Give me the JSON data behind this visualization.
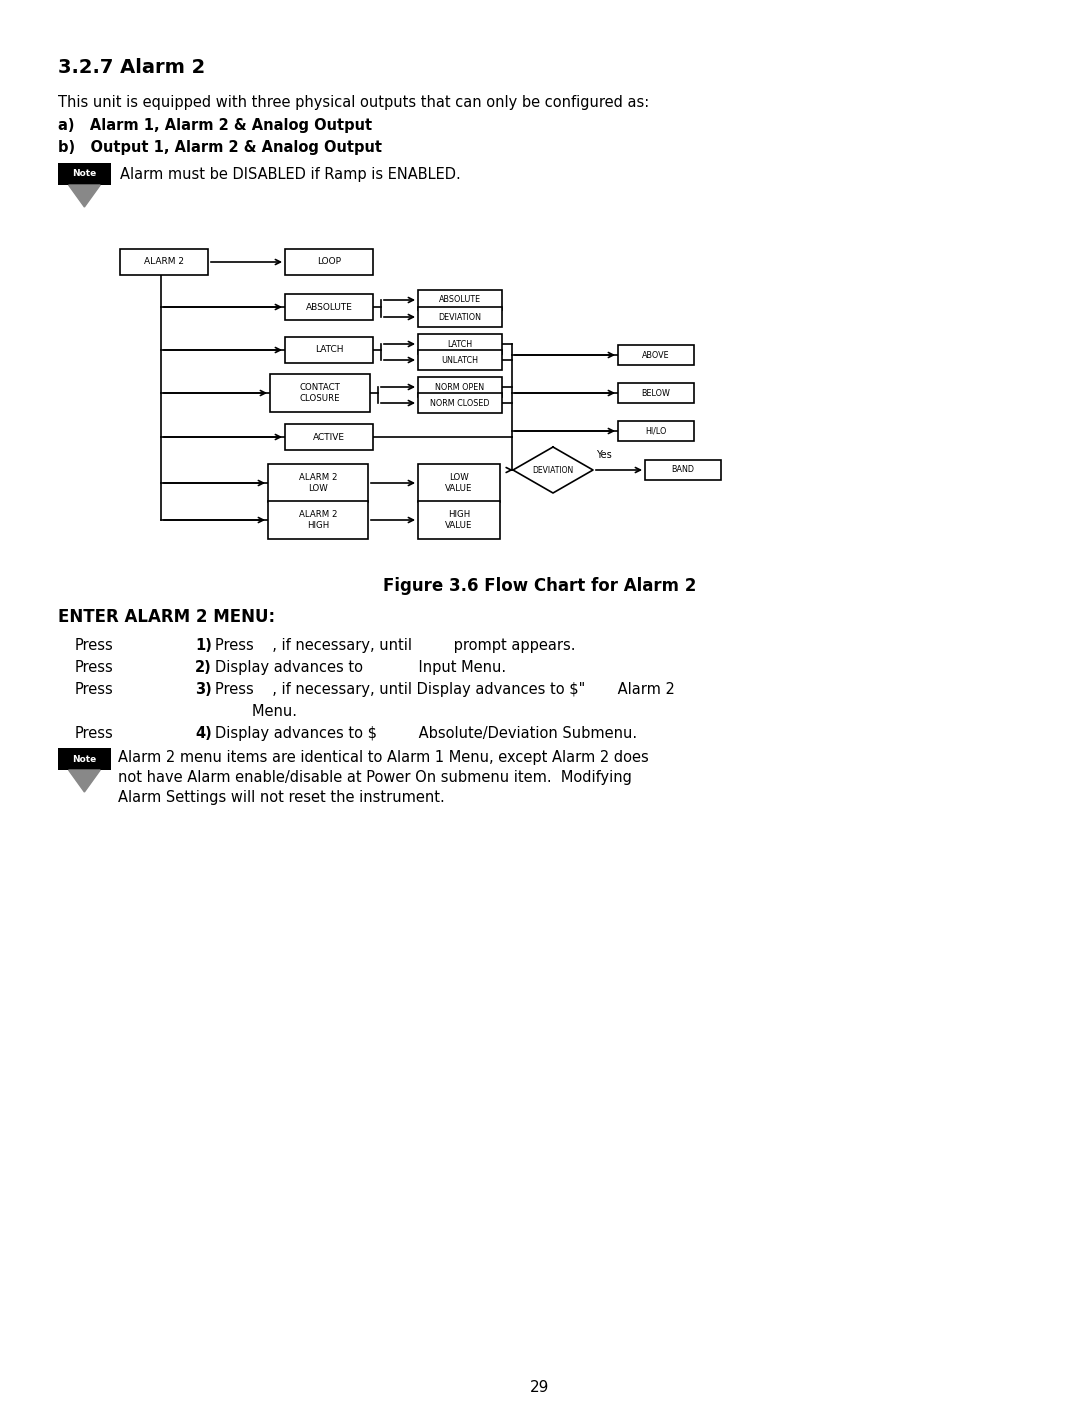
{
  "title": "3.2.7 Alarm 2",
  "bg_color": "#ffffff",
  "intro_line": "This unit is equipped with three physical outputs that can only be configured as:",
  "list_a": "a)   Alarm 1, Alarm 2 & Analog Output",
  "list_b": "b)   Output 1, Alarm 2 & Analog Output",
  "note1_text": "Alarm must be DISABLED if Ramp is ENABLED.",
  "figure_caption": "Figure 3.6 Flow Chart for Alarm 2",
  "enter_menu_title": "ENTER ALARM 2 MENU:",
  "note2_lines": [
    "Alarm 2 menu items are identical to Alarm 1 Menu, except Alarm 2 does",
    "not have Alarm enable/disable at Power On submenu item.  Modifying",
    "Alarm Settings will not reset the instrument."
  ],
  "page_number": "29",
  "press_rows": [
    [
      "Press",
      "1)",
      " Press    , if necessary, until         prompt appears."
    ],
    [
      "Press",
      "2)",
      " Display advances to            Input Menu."
    ],
    [
      "Press",
      "3)",
      " Press    , if necessary, until Display advances to $\"       Alarm 2"
    ],
    [
      "",
      "",
      "        Menu."
    ],
    [
      "Press",
      "4)",
      " Display advances to $         Absolute/Deviation Submenu."
    ]
  ]
}
